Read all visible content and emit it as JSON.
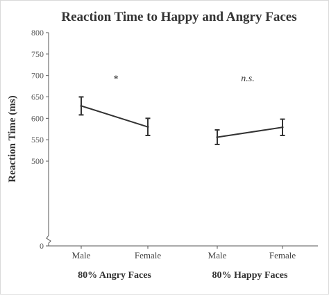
{
  "chart_data": {
    "type": "line",
    "title": "Reaction Time to Happy and Angry Faces",
    "ylabel": "Reaction Time (ms)",
    "xlabel": "",
    "ylim": [
      0,
      800
    ],
    "yticks": [
      0,
      500,
      550,
      600,
      650,
      700,
      750,
      800
    ],
    "axis_break": true,
    "grid": false,
    "groups": [
      {
        "label": "80% Angry Faces",
        "categories": [
          "Male",
          "Female"
        ],
        "values": [
          629,
          580
        ],
        "error": [
          21,
          20
        ],
        "annotation": "*"
      },
      {
        "label": "80% Happy  Faces",
        "categories": [
          "Male",
          "Female"
        ],
        "values": [
          556,
          579
        ],
        "error": [
          17,
          19
        ],
        "annotation": "n.s."
      }
    ]
  }
}
